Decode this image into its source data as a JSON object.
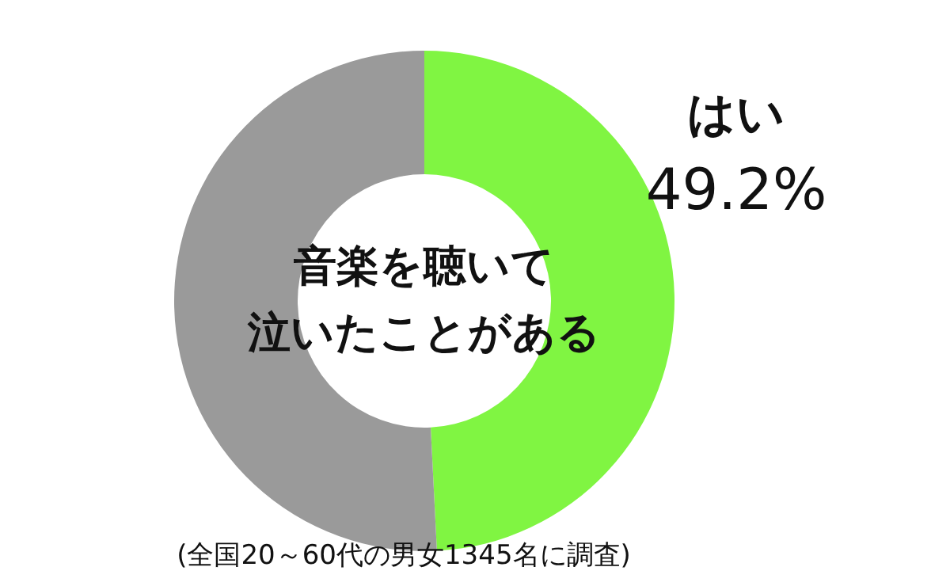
{
  "chart_data": {
    "type": "donut",
    "title": "音楽を聴いて泣いたことがある",
    "categories": [
      "はい",
      null
    ],
    "values": [
      49.2,
      50.8
    ],
    "colors": [
      "#80f542",
      "#9a9a9a"
    ],
    "value_labels": [
      "49.2%",
      null
    ],
    "annotations": [
      "(全国20～60代の男女1345名に調査)"
    ]
  }
}
